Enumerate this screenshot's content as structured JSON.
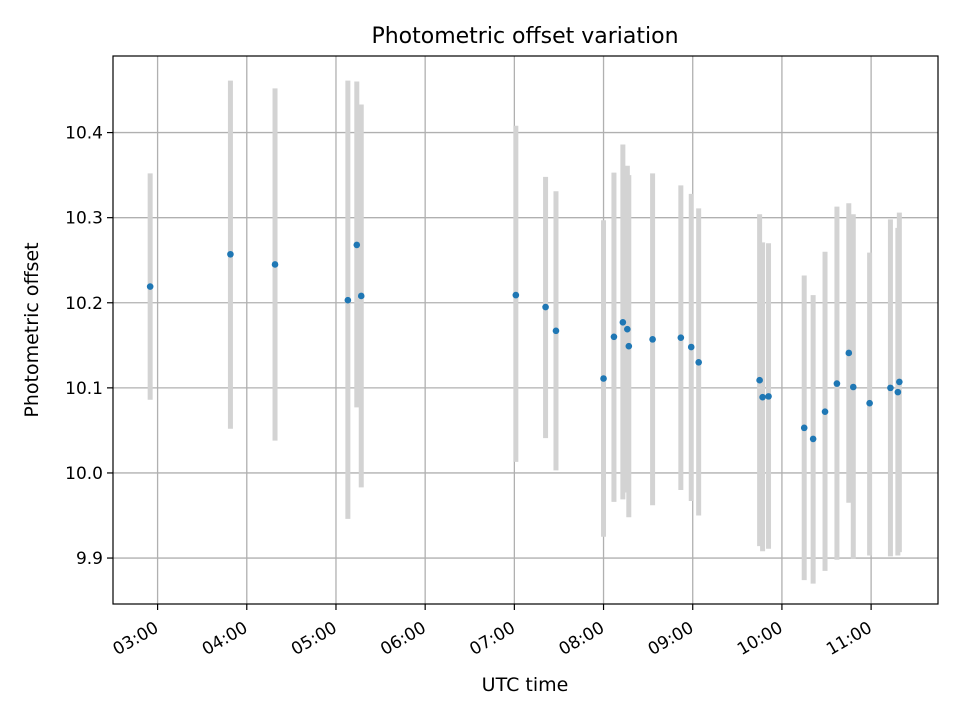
{
  "chart_data": {
    "type": "scatter",
    "title": "Photometric offset variation",
    "xlabel": "UTC time",
    "ylabel": "Photometric offset",
    "xlim": [
      "02:30",
      "11:45"
    ],
    "ylim": [
      9.846,
      10.49
    ],
    "grid": true,
    "x_ticks": [
      "03:00",
      "04:00",
      "05:00",
      "06:00",
      "07:00",
      "08:00",
      "09:00",
      "10:00",
      "11:00"
    ],
    "y_ticks": [
      "9.9",
      "10.0",
      "10.1",
      "10.2",
      "10.3",
      "10.4"
    ],
    "colors": {
      "point": "#1f77b4",
      "errorbar": "#d3d3d3",
      "grid": "#b0b0b0"
    },
    "points": [
      {
        "x": "02:55",
        "y": 10.219,
        "ylow": 10.086,
        "yhigh": 10.352
      },
      {
        "x": "03:49",
        "y": 10.257,
        "ylow": 10.052,
        "yhigh": 10.461
      },
      {
        "x": "04:19",
        "y": 10.245,
        "ylow": 10.038,
        "yhigh": 10.452
      },
      {
        "x": "05:08",
        "y": 10.203,
        "ylow": 9.946,
        "yhigh": 10.461
      },
      {
        "x": "05:14",
        "y": 10.268,
        "ylow": 10.077,
        "yhigh": 10.46
      },
      {
        "x": "05:17",
        "y": 10.208,
        "ylow": 9.983,
        "yhigh": 10.433
      },
      {
        "x": "07:01",
        "y": 10.209,
        "ylow": 10.013,
        "yhigh": 10.408
      },
      {
        "x": "07:21",
        "y": 10.195,
        "ylow": 10.041,
        "yhigh": 10.348
      },
      {
        "x": "07:28",
        "y": 10.167,
        "ylow": 10.003,
        "yhigh": 10.331
      },
      {
        "x": "08:00",
        "y": 10.111,
        "ylow": 9.925,
        "yhigh": 10.297
      },
      {
        "x": "08:07",
        "y": 10.16,
        "ylow": 9.966,
        "yhigh": 10.353
      },
      {
        "x": "08:13",
        "y": 10.177,
        "ylow": 9.969,
        "yhigh": 10.386
      },
      {
        "x": "08:16",
        "y": 10.169,
        "ylow": 9.977,
        "yhigh": 10.361
      },
      {
        "x": "08:17",
        "y": 10.149,
        "ylow": 9.948,
        "yhigh": 10.35
      },
      {
        "x": "08:33",
        "y": 10.157,
        "ylow": 9.962,
        "yhigh": 10.352
      },
      {
        "x": "08:52",
        "y": 10.159,
        "ylow": 9.98,
        "yhigh": 10.338
      },
      {
        "x": "08:59",
        "y": 10.148,
        "ylow": 9.967,
        "yhigh": 10.328
      },
      {
        "x": "09:04",
        "y": 10.13,
        "ylow": 9.95,
        "yhigh": 10.311
      },
      {
        "x": "09:45",
        "y": 10.109,
        "ylow": 9.914,
        "yhigh": 10.304
      },
      {
        "x": "09:47",
        "y": 10.089,
        "ylow": 9.908,
        "yhigh": 10.271
      },
      {
        "x": "09:51",
        "y": 10.09,
        "ylow": 9.911,
        "yhigh": 10.27
      },
      {
        "x": "10:15",
        "y": 10.053,
        "ylow": 9.874,
        "yhigh": 10.232
      },
      {
        "x": "10:21",
        "y": 10.04,
        "ylow": 9.87,
        "yhigh": 10.209
      },
      {
        "x": "10:29",
        "y": 10.072,
        "ylow": 9.885,
        "yhigh": 10.26
      },
      {
        "x": "10:37",
        "y": 10.105,
        "ylow": 9.898,
        "yhigh": 10.313
      },
      {
        "x": "10:45",
        "y": 10.141,
        "ylow": 9.965,
        "yhigh": 10.317
      },
      {
        "x": "10:48",
        "y": 10.101,
        "ylow": 9.899,
        "yhigh": 10.304
      },
      {
        "x": "10:59",
        "y": 10.082,
        "ylow": 9.903,
        "yhigh": 10.259
      },
      {
        "x": "11:13",
        "y": 10.1,
        "ylow": 9.902,
        "yhigh": 10.298
      },
      {
        "x": "11:18",
        "y": 10.095,
        "ylow": 9.903,
        "yhigh": 10.288
      },
      {
        "x": "11:19",
        "y": 10.107,
        "ylow": 9.907,
        "yhigh": 10.306
      }
    ]
  }
}
